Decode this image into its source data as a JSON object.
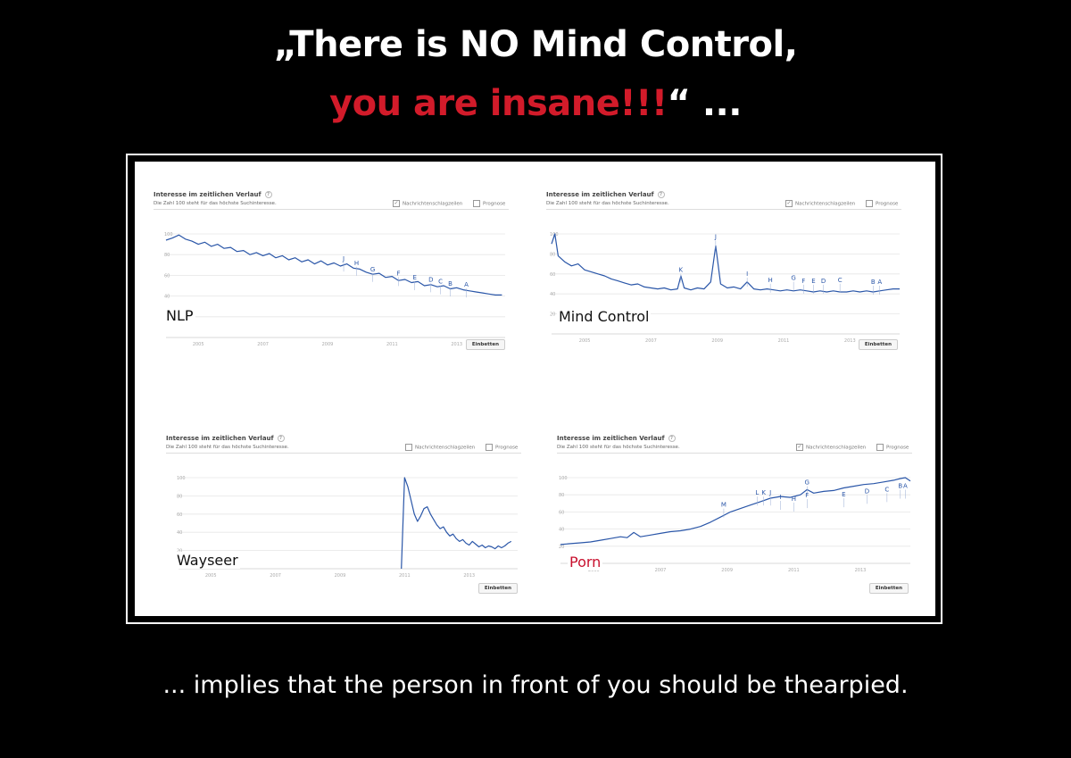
{
  "headline": {
    "line1": "„There is NO Mind Control,",
    "line2_red": "you are insane!!!",
    "line2_rest": "“ ..."
  },
  "footer": "... implies that the person in front of you should be thearpied.",
  "colors": {
    "line": "#2a56a8",
    "red": "#d21b2a"
  },
  "chart_data": [
    {
      "type": "line",
      "label": "NLP",
      "header_title": "Interesse im zeitlichen Verlauf",
      "header_sub": "Die Zahl 100 steht für das höchste Suchinteresse.",
      "opt_news": "Nachrichtenschlagzeilen",
      "opt_forecast": "Prognose",
      "embed": "Einbetten",
      "news_checked": true,
      "ylim": [
        0,
        100
      ],
      "yticks": [
        "100",
        "80",
        "60",
        "40",
        "20"
      ],
      "x_ticks": [
        {
          "x": 2005,
          "label": "2005"
        },
        {
          "x": 2007,
          "label": "2007"
        },
        {
          "x": 2009,
          "label": "2009"
        },
        {
          "x": 2011,
          "label": "2011"
        },
        {
          "x": 2013,
          "label": "2013"
        }
      ],
      "xlim": [
        2004,
        2014.5
      ],
      "points": [
        [
          2004.0,
          94
        ],
        [
          2004.2,
          96
        ],
        [
          2004.4,
          99
        ],
        [
          2004.6,
          95
        ],
        [
          2004.8,
          93
        ],
        [
          2005.0,
          90
        ],
        [
          2005.2,
          92
        ],
        [
          2005.4,
          88
        ],
        [
          2005.6,
          90
        ],
        [
          2005.8,
          86
        ],
        [
          2006.0,
          87
        ],
        [
          2006.2,
          83
        ],
        [
          2006.4,
          84
        ],
        [
          2006.6,
          80
        ],
        [
          2006.8,
          82
        ],
        [
          2007.0,
          79
        ],
        [
          2007.2,
          81
        ],
        [
          2007.4,
          77
        ],
        [
          2007.6,
          79
        ],
        [
          2007.8,
          75
        ],
        [
          2008.0,
          77
        ],
        [
          2008.2,
          73
        ],
        [
          2008.4,
          75
        ],
        [
          2008.6,
          71
        ],
        [
          2008.8,
          74
        ],
        [
          2009.0,
          70
        ],
        [
          2009.2,
          72
        ],
        [
          2009.4,
          69
        ],
        [
          2009.6,
          71
        ],
        [
          2009.8,
          67
        ],
        [
          2010.0,
          66
        ],
        [
          2010.2,
          63
        ],
        [
          2010.4,
          61
        ],
        [
          2010.6,
          62
        ],
        [
          2010.8,
          58
        ],
        [
          2011.0,
          59
        ],
        [
          2011.2,
          55
        ],
        [
          2011.4,
          56
        ],
        [
          2011.6,
          53
        ],
        [
          2011.8,
          54
        ],
        [
          2012.0,
          50
        ],
        [
          2012.2,
          51
        ],
        [
          2012.4,
          49
        ],
        [
          2012.6,
          50
        ],
        [
          2012.8,
          47
        ],
        [
          2013.0,
          48
        ],
        [
          2013.2,
          46
        ],
        [
          2013.4,
          45
        ],
        [
          2013.6,
          44
        ],
        [
          2013.8,
          43
        ],
        [
          2014.0,
          42
        ],
        [
          2014.2,
          41
        ],
        [
          2014.4,
          41
        ]
      ],
      "annotations": [
        {
          "text": "J",
          "x": 2009.5,
          "y": 74
        },
        {
          "text": "H",
          "x": 2009.9,
          "y": 70
        },
        {
          "text": "G",
          "x": 2010.4,
          "y": 64
        },
        {
          "text": "F",
          "x": 2011.2,
          "y": 60
        },
        {
          "text": "E",
          "x": 2011.7,
          "y": 56
        },
        {
          "text": "D",
          "x": 2012.2,
          "y": 54
        },
        {
          "text": "C",
          "x": 2012.5,
          "y": 52
        },
        {
          "text": "B",
          "x": 2012.8,
          "y": 50
        },
        {
          "text": "A",
          "x": 2013.3,
          "y": 49
        }
      ]
    },
    {
      "type": "line",
      "label": "Mind Control",
      "header_title": "Interesse im zeitlichen Verlauf",
      "header_sub": "Die Zahl 100 steht für das höchste Suchinteresse.",
      "opt_news": "Nachrichtenschlagzeilen",
      "opt_forecast": "Prognose",
      "embed": "Einbetten",
      "news_checked": true,
      "ylim": [
        0,
        100
      ],
      "yticks": [
        "100",
        "80",
        "60",
        "40",
        "20"
      ],
      "x_ticks": [
        {
          "x": 2005,
          "label": "2005"
        },
        {
          "x": 2007,
          "label": "2007"
        },
        {
          "x": 2009,
          "label": "2009"
        },
        {
          "x": 2011,
          "label": "2011"
        },
        {
          "x": 2013,
          "label": "2013"
        }
      ],
      "xlim": [
        2004,
        2014.5
      ],
      "points": [
        [
          2004.0,
          90
        ],
        [
          2004.1,
          100
        ],
        [
          2004.2,
          78
        ],
        [
          2004.4,
          72
        ],
        [
          2004.6,
          68
        ],
        [
          2004.8,
          70
        ],
        [
          2005.0,
          64
        ],
        [
          2005.2,
          62
        ],
        [
          2005.4,
          60
        ],
        [
          2005.6,
          58
        ],
        [
          2005.8,
          55
        ],
        [
          2006.0,
          53
        ],
        [
          2006.2,
          51
        ],
        [
          2006.4,
          49
        ],
        [
          2006.6,
          50
        ],
        [
          2006.8,
          47
        ],
        [
          2007.0,
          46
        ],
        [
          2007.2,
          45
        ],
        [
          2007.4,
          46
        ],
        [
          2007.6,
          44
        ],
        [
          2007.8,
          45
        ],
        [
          2007.9,
          58
        ],
        [
          2008.0,
          46
        ],
        [
          2008.2,
          44
        ],
        [
          2008.4,
          46
        ],
        [
          2008.6,
          45
        ],
        [
          2008.8,
          52
        ],
        [
          2008.95,
          88
        ],
        [
          2009.1,
          50
        ],
        [
          2009.3,
          46
        ],
        [
          2009.5,
          47
        ],
        [
          2009.7,
          45
        ],
        [
          2009.9,
          52
        ],
        [
          2010.1,
          45
        ],
        [
          2010.3,
          44
        ],
        [
          2010.5,
          45
        ],
        [
          2010.7,
          44
        ],
        [
          2010.9,
          43
        ],
        [
          2011.1,
          44
        ],
        [
          2011.3,
          43
        ],
        [
          2011.5,
          44
        ],
        [
          2011.7,
          43
        ],
        [
          2011.9,
          42
        ],
        [
          2012.1,
          43
        ],
        [
          2012.3,
          42
        ],
        [
          2012.5,
          43
        ],
        [
          2012.7,
          42
        ],
        [
          2012.9,
          42
        ],
        [
          2013.1,
          43
        ],
        [
          2013.3,
          42
        ],
        [
          2013.5,
          43
        ],
        [
          2013.7,
          42
        ],
        [
          2013.9,
          43
        ],
        [
          2014.1,
          44
        ],
        [
          2014.3,
          45
        ],
        [
          2014.5,
          45
        ]
      ],
      "annotations": [
        {
          "text": "J",
          "x": 2008.95,
          "y": 95
        },
        {
          "text": "K",
          "x": 2007.9,
          "y": 62
        },
        {
          "text": "I",
          "x": 2009.9,
          "y": 58
        },
        {
          "text": "H",
          "x": 2010.6,
          "y": 52
        },
        {
          "text": "G",
          "x": 2011.3,
          "y": 54
        },
        {
          "text": "F",
          "x": 2011.6,
          "y": 51
        },
        {
          "text": "E",
          "x": 2011.9,
          "y": 51
        },
        {
          "text": "D",
          "x": 2012.2,
          "y": 51
        },
        {
          "text": "C",
          "x": 2012.7,
          "y": 52
        },
        {
          "text": "B",
          "x": 2013.7,
          "y": 50
        },
        {
          "text": "A",
          "x": 2013.9,
          "y": 50
        }
      ]
    },
    {
      "type": "line",
      "label": "Wayseer",
      "header_title": "Interesse im zeitlichen Verlauf",
      "header_sub": "Die Zahl 100 steht für das höchste Suchinteresse.",
      "opt_news": "Nachrichtenschlagzeilen",
      "opt_forecast": "Prognose",
      "embed": "Einbetten",
      "news_checked": false,
      "ylim": [
        0,
        100
      ],
      "yticks": [
        "100",
        "80",
        "60",
        "40",
        "20"
      ],
      "x_ticks": [
        {
          "x": 2005,
          "label": "2005"
        },
        {
          "x": 2007,
          "label": "2007"
        },
        {
          "x": 2009,
          "label": "2009"
        },
        {
          "x": 2011,
          "label": "2011"
        },
        {
          "x": 2013,
          "label": "2013"
        }
      ],
      "xlim": [
        2004,
        2014.5
      ],
      "points": [
        [
          2010.9,
          0
        ],
        [
          2011.0,
          100
        ],
        [
          2011.1,
          90
        ],
        [
          2011.2,
          75
        ],
        [
          2011.3,
          60
        ],
        [
          2011.4,
          52
        ],
        [
          2011.5,
          58
        ],
        [
          2011.6,
          66
        ],
        [
          2011.7,
          68
        ],
        [
          2011.8,
          60
        ],
        [
          2011.9,
          54
        ],
        [
          2012.0,
          48
        ],
        [
          2012.1,
          44
        ],
        [
          2012.2,
          46
        ],
        [
          2012.3,
          40
        ],
        [
          2012.4,
          36
        ],
        [
          2012.5,
          38
        ],
        [
          2012.6,
          33
        ],
        [
          2012.7,
          30
        ],
        [
          2012.8,
          32
        ],
        [
          2012.9,
          28
        ],
        [
          2013.0,
          26
        ],
        [
          2013.1,
          30
        ],
        [
          2013.2,
          27
        ],
        [
          2013.3,
          24
        ],
        [
          2013.4,
          26
        ],
        [
          2013.5,
          23
        ],
        [
          2013.6,
          25
        ],
        [
          2013.7,
          24
        ],
        [
          2013.8,
          22
        ],
        [
          2013.9,
          25
        ],
        [
          2014.0,
          23
        ],
        [
          2014.1,
          25
        ],
        [
          2014.2,
          28
        ],
        [
          2014.3,
          30
        ]
      ],
      "annotations": []
    },
    {
      "type": "line",
      "label": "Porn",
      "header_title": "Interesse im zeitlichen Verlauf",
      "header_sub": "Die Zahl 100 steht für das höchste Suchinteresse.",
      "opt_news": "Nachrichtenschlagzeilen",
      "opt_forecast": "Prognose",
      "embed": "Einbetten",
      "news_checked": true,
      "ylim": [
        0,
        100
      ],
      "yticks": [
        "100",
        "80",
        "60",
        "40",
        "20"
      ],
      "x_ticks": [
        {
          "x": 2005,
          "label": "2005"
        },
        {
          "x": 2007,
          "label": "2007"
        },
        {
          "x": 2009,
          "label": "2009"
        },
        {
          "x": 2011,
          "label": "2011"
        },
        {
          "x": 2013,
          "label": "2013"
        }
      ],
      "xlim": [
        2004,
        2014.5
      ],
      "points": [
        [
          2004.0,
          22
        ],
        [
          2004.3,
          23
        ],
        [
          2004.6,
          24
        ],
        [
          2004.9,
          25
        ],
        [
          2005.2,
          27
        ],
        [
          2005.5,
          29
        ],
        [
          2005.8,
          31
        ],
        [
          2006.0,
          30
        ],
        [
          2006.2,
          36
        ],
        [
          2006.4,
          31
        ],
        [
          2006.7,
          33
        ],
        [
          2007.0,
          35
        ],
        [
          2007.3,
          37
        ],
        [
          2007.6,
          38
        ],
        [
          2007.9,
          40
        ],
        [
          2008.2,
          43
        ],
        [
          2008.5,
          48
        ],
        [
          2008.8,
          54
        ],
        [
          2009.1,
          60
        ],
        [
          2009.4,
          64
        ],
        [
          2009.7,
          68
        ],
        [
          2010.0,
          72
        ],
        [
          2010.3,
          76
        ],
        [
          2010.6,
          78
        ],
        [
          2010.9,
          77
        ],
        [
          2011.2,
          80
        ],
        [
          2011.4,
          86
        ],
        [
          2011.6,
          82
        ],
        [
          2011.9,
          84
        ],
        [
          2012.2,
          85
        ],
        [
          2012.5,
          88
        ],
        [
          2012.8,
          90
        ],
        [
          2013.1,
          92
        ],
        [
          2013.4,
          93
        ],
        [
          2013.7,
          95
        ],
        [
          2014.0,
          97
        ],
        [
          2014.2,
          99
        ],
        [
          2014.35,
          100
        ],
        [
          2014.5,
          96
        ]
      ],
      "annotations": [
        {
          "text": "M",
          "x": 2008.9,
          "y": 66
        },
        {
          "text": "L",
          "x": 2009.9,
          "y": 80
        },
        {
          "text": "K",
          "x": 2010.1,
          "y": 80
        },
        {
          "text": "J",
          "x": 2010.3,
          "y": 80
        },
        {
          "text": "I",
          "x": 2010.6,
          "y": 75
        },
        {
          "text": "H",
          "x": 2011.0,
          "y": 73
        },
        {
          "text": "G",
          "x": 2011.4,
          "y": 92
        },
        {
          "text": "F",
          "x": 2011.4,
          "y": 77
        },
        {
          "text": "E",
          "x": 2012.5,
          "y": 78
        },
        {
          "text": "D",
          "x": 2013.2,
          "y": 82
        },
        {
          "text": "C",
          "x": 2013.8,
          "y": 84
        },
        {
          "text": "B",
          "x": 2014.2,
          "y": 88
        },
        {
          "text": "A",
          "x": 2014.35,
          "y": 88
        }
      ]
    }
  ]
}
